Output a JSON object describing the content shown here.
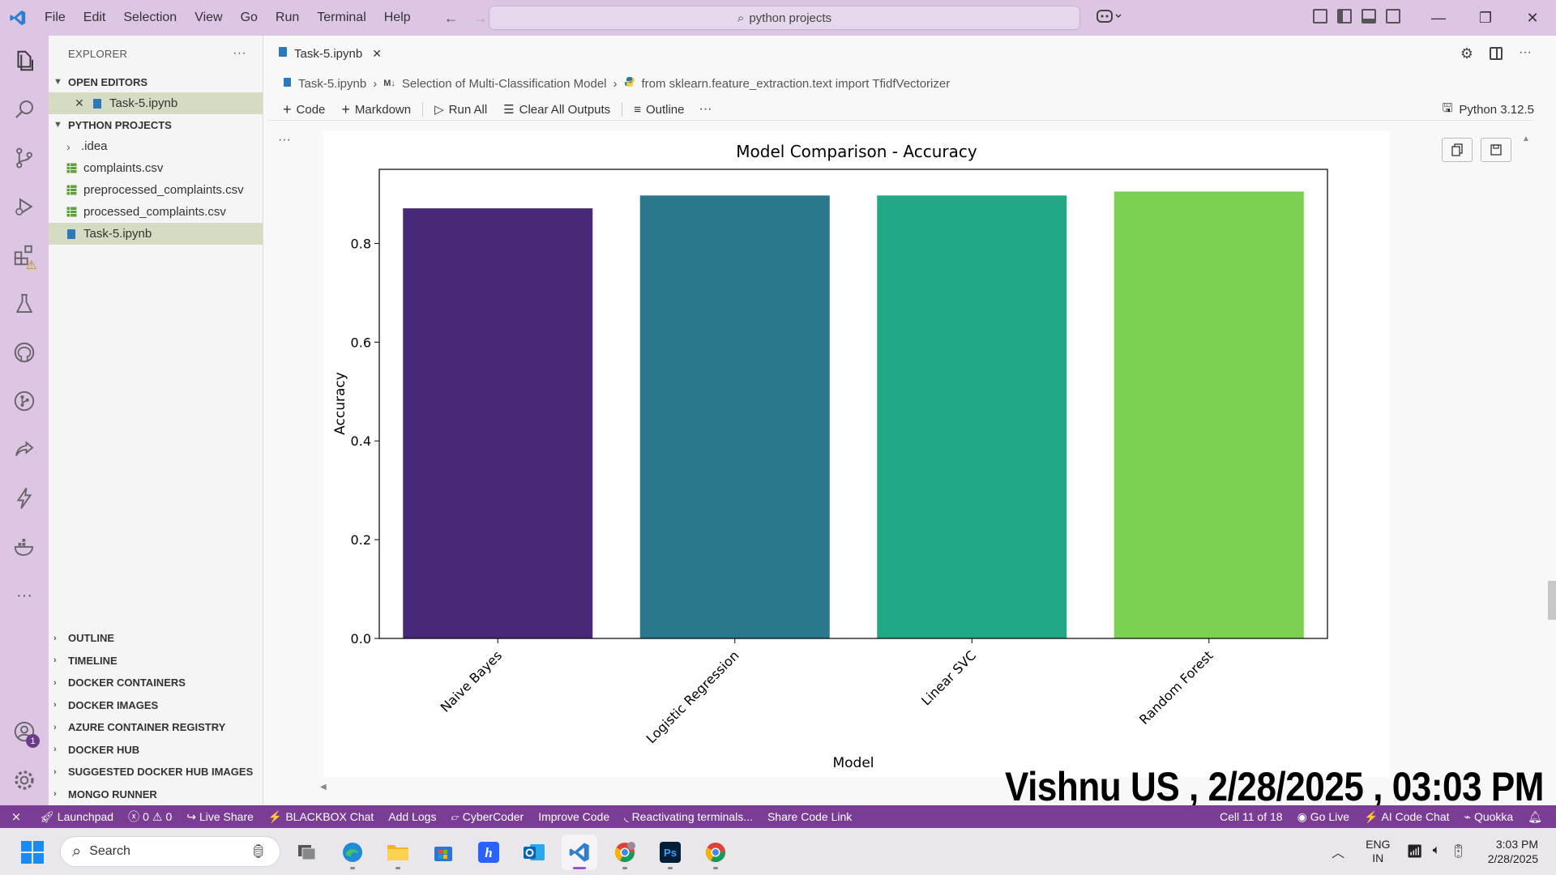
{
  "menu": [
    "File",
    "Edit",
    "Selection",
    "View",
    "Go",
    "Run",
    "Terminal",
    "Help"
  ],
  "search": {
    "text": "python projects"
  },
  "sidebar": {
    "title": "EXPLORER",
    "more": "···",
    "open_editors_label": "OPEN EDITORS",
    "open_editors": [
      {
        "name": "Task-5.ipynb"
      }
    ],
    "project_label": "PYTHON PROJECTS",
    "files": [
      {
        "name": ".idea",
        "kind": "folder"
      },
      {
        "name": "complaints.csv",
        "kind": "csv"
      },
      {
        "name": "preprocessed_complaints.csv",
        "kind": "csv"
      },
      {
        "name": "processed_complaints.csv",
        "kind": "csv"
      },
      {
        "name": "Task-5.ipynb",
        "kind": "notebook"
      }
    ],
    "panels": [
      "OUTLINE",
      "TIMELINE",
      "DOCKER CONTAINERS",
      "DOCKER IMAGES",
      "AZURE CONTAINER REGISTRY",
      "DOCKER HUB",
      "SUGGESTED DOCKER HUB IMAGES",
      "MONGO RUNNER"
    ]
  },
  "activity_badges": {
    "accounts": "1"
  },
  "tab": {
    "label": "Task-5.ipynb"
  },
  "breadcrumb": [
    "Task-5.ipynb",
    "Selection of Multi-Classification Model",
    "from sklearn.feature_extraction.text import TfidfVectorizer"
  ],
  "toolbar": {
    "code": "Code",
    "markdown": "Markdown",
    "run_all": "Run All",
    "clear_outputs": "Clear All Outputs",
    "outline": "Outline",
    "more": "···",
    "kernel": "Python 3.12.5"
  },
  "cell": {
    "more": "···"
  },
  "chart_data": {
    "type": "bar",
    "title": "Model Comparison - Accuracy",
    "xlabel": "Model",
    "ylabel": "Accuracy",
    "categories": [
      "Naive Bayes",
      "Logistic Regression",
      "Linear SVC",
      "Random Forest"
    ],
    "values": [
      0.871,
      0.897,
      0.897,
      0.905
    ],
    "colors": [
      "#482879",
      "#2a788e",
      "#22a884",
      "#7ad151"
    ],
    "ylim": [
      0,
      0.95
    ],
    "yticks": [
      0.0,
      0.2,
      0.4,
      0.6,
      0.8
    ],
    "ytick_labels": [
      "0.0",
      "0.2",
      "0.4",
      "0.6",
      "0.8"
    ],
    "grid": false,
    "legend": "none"
  },
  "watermark": "Vishnu US , 2/28/2025 , 03:03 PM",
  "statusbar": {
    "launchpad": "Launchpad",
    "errors": "0",
    "warnings": "0",
    "live_share": "Live Share",
    "blackbox": "BLACKBOX Chat",
    "add_logs": "Add Logs",
    "cybercoder": "CyberCoder",
    "improve": "Improve Code",
    "terminals": "Reactivating terminals...",
    "share_link": "Share Code Link",
    "cell_pos": "Cell 11 of 18",
    "go_live": "Go Live",
    "ai_chat": "AI Code Chat",
    "quokka": "Quokka"
  },
  "taskbar": {
    "search": "Search",
    "lang1": "ENG",
    "lang2": "IN",
    "time": "3:03 PM",
    "date": "2/28/2025"
  },
  "colors": {
    "accent": "#7a3c94",
    "titlebar": "#dcc6e4",
    "selection": "#d4dcc4"
  }
}
